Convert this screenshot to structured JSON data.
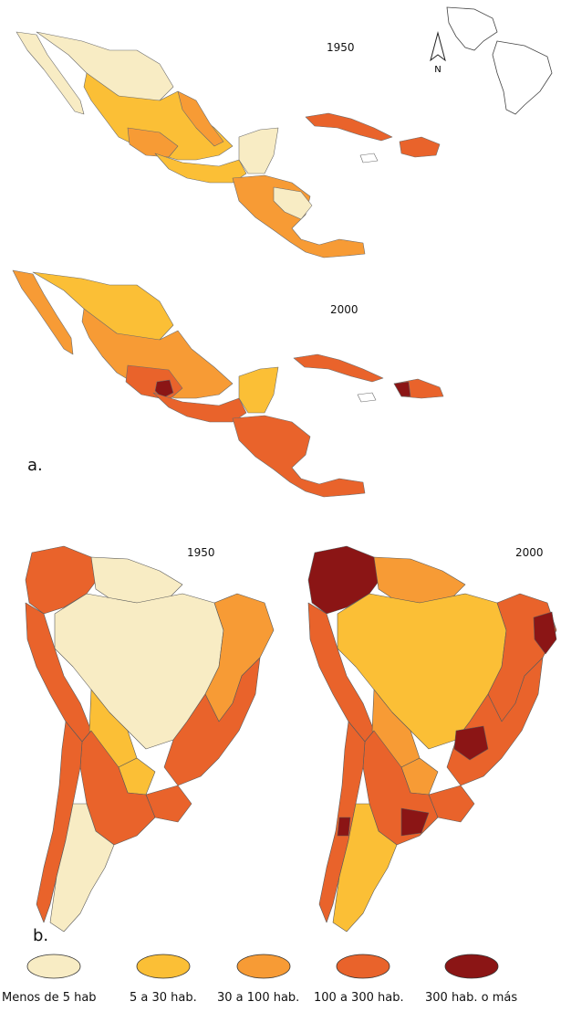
{
  "panel_a": {
    "label": "a.",
    "year_1": "1950",
    "year_2": "2000"
  },
  "panel_b": {
    "label": "b.",
    "year_1": "1950",
    "year_2": "2000"
  },
  "north_arrow": {
    "label": "N"
  },
  "legend": {
    "items": [
      {
        "label": "Menos de 5 hab",
        "color": "#f8ecc4"
      },
      {
        "label": "5 a 30 hab.",
        "color": "#fbbf36"
      },
      {
        "label": "30 a 100 hab.",
        "color": "#f79b35"
      },
      {
        "label": "100 a 300 hab.",
        "color": "#e9632b"
      },
      {
        "label": "300 hab. o más",
        "color": "#8b1515"
      }
    ]
  }
}
